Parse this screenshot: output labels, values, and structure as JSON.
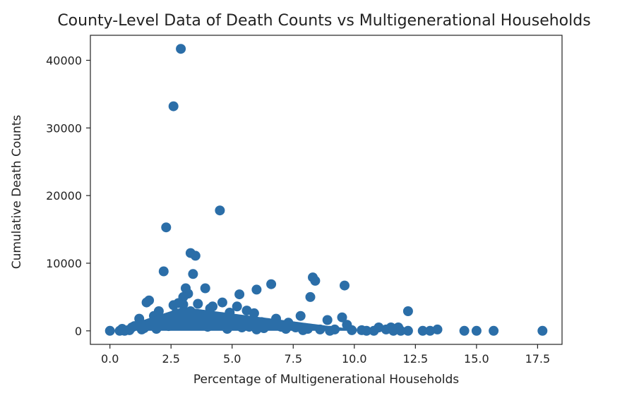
{
  "chart_data": {
    "type": "scatter",
    "title": "County-Level Data of Death Counts vs Multigenerational Households",
    "xlabel": "Percentage of Multigenerational Households",
    "ylabel": "Cumulative Death Counts",
    "xlim": [
      -0.8,
      18.5
    ],
    "ylim": [
      -2000,
      43700
    ],
    "xticks": [
      0.0,
      2.5,
      5.0,
      7.5,
      10.0,
      12.5,
      15.0,
      17.5
    ],
    "xtick_labels": [
      "0.0",
      "2.5",
      "5.0",
      "7.5",
      "10.0",
      "12.5",
      "15.0",
      "17.5"
    ],
    "yticks": [
      0,
      10000,
      20000,
      30000,
      40000
    ],
    "ytick_labels": [
      "0",
      "10000",
      "20000",
      "30000",
      "40000"
    ],
    "grid": false,
    "legend": "none",
    "series": [
      {
        "color": "#2b6ea8",
        "points": [
          [
            2.9,
            41700
          ],
          [
            2.6,
            33200
          ],
          [
            4.5,
            17800
          ],
          [
            2.3,
            15300
          ],
          [
            3.3,
            11500
          ],
          [
            3.5,
            11100
          ],
          [
            2.2,
            8800
          ],
          [
            3.4,
            8400
          ],
          [
            8.3,
            7900
          ],
          [
            8.4,
            7400
          ],
          [
            6.6,
            6900
          ],
          [
            9.6,
            6700
          ],
          [
            3.9,
            6300
          ],
          [
            3.1,
            6300
          ],
          [
            6.0,
            6100
          ],
          [
            3.2,
            5500
          ],
          [
            5.3,
            5400
          ],
          [
            8.2,
            5000
          ],
          [
            3.0,
            5000
          ],
          [
            1.6,
            4500
          ],
          [
            1.5,
            4200
          ],
          [
            4.6,
            4200
          ],
          [
            12.2,
            2900
          ],
          [
            9.5,
            2000
          ],
          [
            8.9,
            1600
          ],
          [
            7.8,
            2200
          ],
          [
            6.8,
            1800
          ],
          [
            5.9,
            2600
          ],
          [
            5.2,
            3600
          ],
          [
            4.2,
            3600
          ],
          [
            3.6,
            4000
          ],
          [
            2.6,
            3800
          ],
          [
            2.0,
            2900
          ],
          [
            1.2,
            1800
          ],
          [
            1.8,
            2200
          ],
          [
            4.9,
            2700
          ],
          [
            5.6,
            3000
          ],
          [
            4.1,
            3300
          ],
          [
            3.0,
            3900
          ],
          [
            2.8,
            4100
          ],
          [
            6.2,
            1300
          ],
          [
            7.3,
            1200
          ],
          [
            9.7,
            900
          ],
          [
            11.0,
            500
          ],
          [
            11.5,
            500
          ],
          [
            11.8,
            500
          ],
          [
            0.0,
            0
          ],
          [
            0.4,
            0
          ],
          [
            0.8,
            100
          ],
          [
            1.0,
            700
          ],
          [
            1.4,
            400
          ],
          [
            2.3,
            1500
          ],
          [
            3.7,
            2300
          ],
          [
            4.4,
            1900
          ],
          [
            5.0,
            1700
          ],
          [
            5.5,
            1100
          ],
          [
            6.5,
            900
          ],
          [
            7.0,
            600
          ],
          [
            7.6,
            500
          ],
          [
            8.1,
            300
          ],
          [
            8.6,
            200
          ],
          [
            9.2,
            200
          ],
          [
            9.9,
            100
          ],
          [
            10.3,
            100
          ],
          [
            10.8,
            0
          ],
          [
            11.3,
            200
          ],
          [
            11.6,
            0
          ],
          [
            12.2,
            0
          ],
          [
            12.8,
            0
          ],
          [
            13.1,
            0
          ],
          [
            13.4,
            200
          ],
          [
            14.5,
            0
          ],
          [
            15.0,
            0
          ],
          [
            15.7,
            0
          ],
          [
            17.7,
            0
          ],
          [
            0.5,
            300
          ],
          [
            0.9,
            500
          ],
          [
            1.6,
            1100
          ],
          [
            2.1,
            1200
          ],
          [
            2.7,
            2600
          ],
          [
            3.3,
            2900
          ],
          [
            3.9,
            1200
          ],
          [
            4.7,
            800
          ],
          [
            5.7,
            600
          ],
          [
            6.3,
            400
          ],
          [
            7.2,
            300
          ],
          [
            7.9,
            100
          ],
          [
            2.4,
            700
          ],
          [
            3.0,
            1500
          ],
          [
            4.0,
            600
          ],
          [
            1.3,
            200
          ],
          [
            0.6,
            0
          ],
          [
            1.9,
            300
          ],
          [
            6.9,
            1000
          ],
          [
            9.0,
            0
          ],
          [
            10.5,
            0
          ],
          [
            11.9,
            0
          ],
          [
            4.8,
            300
          ],
          [
            5.4,
            500
          ],
          [
            6.0,
            200
          ]
        ]
      }
    ]
  }
}
